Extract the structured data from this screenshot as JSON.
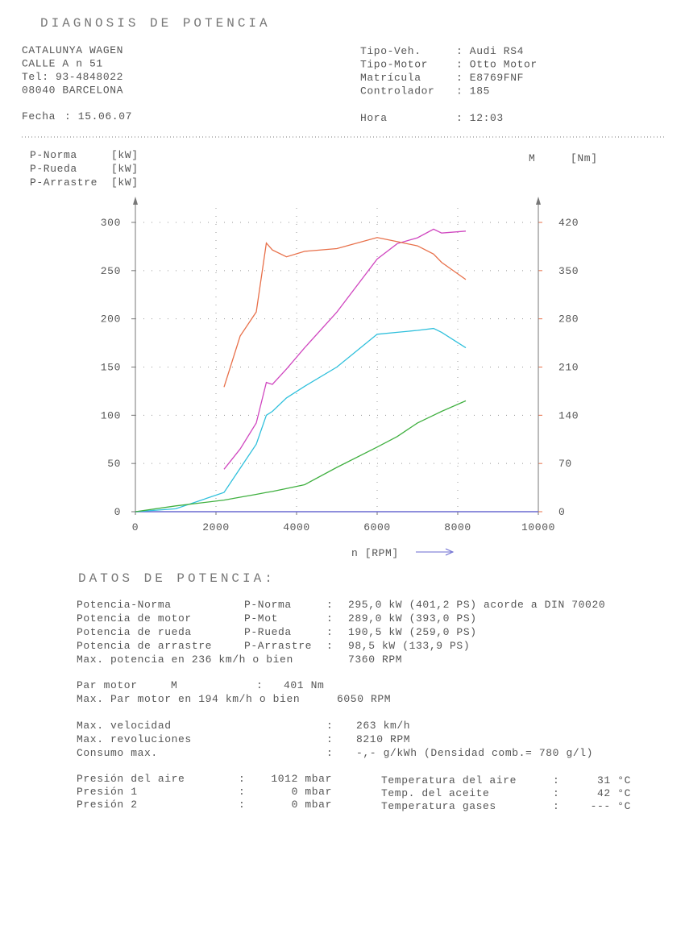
{
  "header": {
    "title": "DIAGNOSIS DE POTENCIA",
    "workshop": [
      "CATALUNYA WAGEN",
      "CALLE A n 51",
      "Tel: 93-4848022",
      "08040 BARCELONA"
    ],
    "vehicle": [
      {
        "label": "Tipo-Veh.",
        "value": ": Audi RS4"
      },
      {
        "label": "Tipo-Motor",
        "value": ": Otto Motor"
      },
      {
        "label": "Matrícula",
        "value": ": E8769FNF"
      },
      {
        "label": "Controlador",
        "value": ": 185"
      }
    ],
    "fecha": {
      "label": "Fecha",
      "value": ": 15.06.07"
    },
    "hora": {
      "label": "Hora",
      "value": ": 12:03"
    }
  },
  "chart_data": {
    "type": "line",
    "x_label": "n [RPM]",
    "y_unit": "[kW]",
    "y2_name": "M",
    "y2_unit": "[Nm]",
    "x": [
      0,
      1000,
      2200,
      2600,
      3000,
      3250,
      3400,
      3750,
      4200,
      5000,
      6000,
      6500,
      7000,
      7400,
      7600,
      8200
    ],
    "series": [
      {
        "name": "P-Norma",
        "color": "#d048c0",
        "values": [
          null,
          null,
          44,
          65,
          92,
          134,
          132,
          148,
          170,
          207,
          262,
          278,
          284,
          293,
          289,
          291
        ]
      },
      {
        "name": "P-Rueda",
        "color": "#30c0dc",
        "values": [
          0,
          3,
          20,
          45,
          70,
          100,
          104,
          118,
          130,
          150,
          184,
          186,
          188,
          190,
          186,
          170
        ]
      },
      {
        "name": "P-Arrastre",
        "color": "#40b040",
        "values": [
          0,
          6,
          12,
          15,
          18,
          20,
          21,
          24,
          28,
          46,
          67,
          78,
          92,
          100,
          104,
          115
        ]
      },
      {
        "name": "M",
        "color": "#e8704a",
        "axis": "y2",
        "values": [
          null,
          null,
          181,
          255,
          290,
          390,
          380,
          370,
          378,
          382,
          398,
          392,
          386,
          374,
          362,
          337
        ]
      }
    ],
    "xlim": [
      0,
      10000
    ],
    "xticks": [
      0,
      2000,
      4000,
      6000,
      8000,
      10000
    ],
    "ylim": [
      0,
      315
    ],
    "yticks": [
      0,
      50,
      100,
      150,
      200,
      250,
      300
    ],
    "y2lim": [
      0,
      441
    ],
    "y2ticks": [
      0,
      70,
      140,
      210,
      280,
      350,
      420
    ],
    "y2_color": "#e8704a",
    "grid": true
  },
  "datos": {
    "title": "DATOS DE POTENCIA:",
    "power": [
      {
        "color": "#d048c0",
        "cells": [
          "Potencia-Norma",
          "P-Norma",
          ":",
          "295,0 kW (401,2 PS) acorde a DIN 70020"
        ]
      },
      {
        "color": "#555555",
        "cells": [
          "Potencia de motor",
          "P-Mot",
          ":",
          "289,0 kW (393,0 PS)"
        ]
      },
      {
        "color": "#30c0dc",
        "cells": [
          "Potencia de rueda",
          "P-Rueda",
          ":",
          "190,5 kW (259,0 PS)"
        ]
      },
      {
        "color": "#40b040",
        "cells": [
          "Potencia de arrastre",
          "P-Arrastre",
          ":",
          "98,5 kW (133,9 PS)"
        ]
      },
      {
        "color": "#555555",
        "cells": [
          "Max. potencia en 236 km/h o bien",
          "7360 RPM"
        ]
      }
    ],
    "torque": [
      {
        "color": "#e8704a",
        "cells": [
          "Par motor",
          "M",
          ":",
          "401 Nm"
        ]
      },
      {
        "color": "#555555",
        "cells": [
          "Max. Par motor en 194 km/h o bien",
          "6050 RPM"
        ]
      }
    ],
    "speed": [
      {
        "color": "#555555",
        "cells": [
          "Max. velocidad",
          ":",
          "263 km/h"
        ]
      },
      {
        "color": "#555555",
        "cells": [
          "Max. revoluciones",
          ":",
          "8210 RPM"
        ]
      },
      {
        "color": "#555555",
        "cells": [
          "Consumo max.",
          ":",
          "-,- g/kWh (Densidad comb.= 780 g/l)"
        ]
      }
    ],
    "pressure": [
      {
        "color": "#555555",
        "cells": [
          "Presión del aire",
          ":",
          "1012 mbar"
        ]
      },
      {
        "color": "#555555",
        "cells": [
          "Presión 1",
          ":",
          "0 mbar"
        ]
      },
      {
        "color": "#555555",
        "cells": [
          "Presión 2",
          ":",
          "0 mbar"
        ]
      }
    ],
    "temperature": [
      {
        "color": "#555555",
        "cells": [
          "Temperatura del aire",
          ":",
          "31 °C"
        ]
      },
      {
        "color": "#555555",
        "cells": [
          "Temp. del aceite",
          ":",
          "42 °C"
        ]
      },
      {
        "color": "#555555",
        "cells": [
          "Temperatura gases",
          ":",
          "--- °C"
        ]
      }
    ]
  }
}
